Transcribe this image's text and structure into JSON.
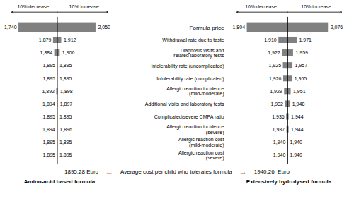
{
  "chart_data": [
    {
      "type": "bar",
      "orientation": "horizontal",
      "categories": [
        "Formula price",
        "Withdrawal rate due to taste",
        "Diagnosis visits and\nrelated laboratory tests",
        "Intolerability rate (uncomplicated)",
        "Intolerability rate (complicated)",
        "Allergic reaction incidence\n(mild-moderate)",
        "Additional visits and laboratory tests",
        "Complicated/severe CMPA ratio",
        "Allergic reaction incidence\n(severe)",
        "Allergic reaction cost\n(mild-moderate)",
        "Allergic reaction cost\n(severe)"
      ],
      "series": [
        {
          "name": "10% decrease",
          "values": [
            1740,
            1879,
            1884,
            1895,
            1895,
            1892,
            1894,
            1895,
            1894,
            1895,
            1895
          ],
          "value_labels": [
            "1,740",
            "1,879",
            "1,884",
            "1,895",
            "1,895",
            "1,892",
            "1,894",
            "1,895",
            "1,894",
            "1,895",
            "1,895"
          ]
        },
        {
          "name": "10% increase",
          "values": [
            2050,
            1912,
            1906,
            1895,
            1895,
            1898,
            1897,
            1895,
            1896,
            1895,
            1895
          ],
          "value_labels": [
            "2,050",
            "1,912",
            "1,906",
            "1,895",
            "1,895",
            "1,898",
            "1,897",
            "1,895",
            "1,896",
            "1,895",
            "1,895"
          ]
        }
      ],
      "color": "#808080",
      "base": 1895.28,
      "xlim": [
        1700,
        2110
      ],
      "xticks": [],
      "xlabel": "Amino-acid based formula",
      "tick_labels": false,
      "data_labels": true,
      "annotations": [
        {
          "text": "1895.28 Euro"
        },
        {
          "text": "←",
          "color": "#C87137"
        },
        {
          "text": "Average cost per child who tolerates formula"
        }
      ]
    },
    {
      "type": "bar",
      "orientation": "horizontal",
      "categories": [
        "Formula price",
        "Withdrawal rate due to taste",
        "Diagnosis visits and\nrelated laboratory tests",
        "Intolerability rate (uncomplicated)",
        "Intolerability rate (complicated)",
        "Allergic reaction incidence\n(mild-moderate)",
        "Additional visits and laboratory tests",
        "Complicated/severe CMPA ratio",
        "Allergic reaction incidence\n(severe)",
        "Allergic reaction cost\n(mild-moderate)",
        "Allergic reaction cost\n(severe)"
      ],
      "series": [
        {
          "name": "10% decrease",
          "values": [
            1804,
            1910,
            1922,
            1925,
            1926,
            1929,
            1932,
            1936,
            1937,
            1940,
            1940
          ],
          "value_labels": [
            "1,804",
            "1,910",
            "1,922",
            "1,925",
            "1,926",
            "1,929",
            "1,932",
            "1,936",
            "1,937",
            "1,940",
            "1,940"
          ]
        },
        {
          "name": "10% increase",
          "values": [
            2076,
            1971,
            1959,
            1957,
            1955,
            1951,
            1948,
            1944,
            1944,
            1940,
            1940
          ],
          "value_labels": [
            "2,076",
            "1,971",
            "1,959",
            "1,957",
            "1,955",
            "1,951",
            "1,948",
            "1,944",
            "1,944",
            "1,940",
            "1,940"
          ]
        }
      ],
      "color": "#808080",
      "base": 1940.26,
      "xlim": [
        1760,
        2130
      ],
      "xticks": [],
      "xlabel": "Extensively hydrolysed formula",
      "tick_labels": "y",
      "data_labels": true,
      "annotations": [
        {
          "text": "→",
          "color": "#C87137"
        },
        {
          "text": "1940.26  Euro"
        }
      ]
    }
  ]
}
